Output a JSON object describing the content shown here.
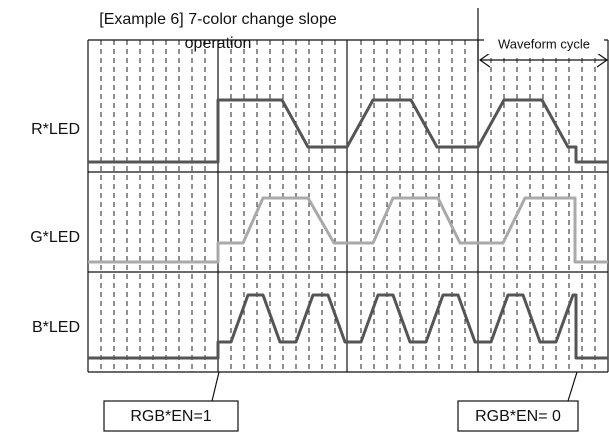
{
  "title": [
    "[Example 6] 7-color change slope",
    "operation"
  ],
  "cycle_label": "Waveform cycle",
  "rows": [
    "R*LED",
    "G*LED",
    "B*LED"
  ],
  "callouts": [
    "RGB*EN=1",
    "RGB*EN= 0"
  ]
}
